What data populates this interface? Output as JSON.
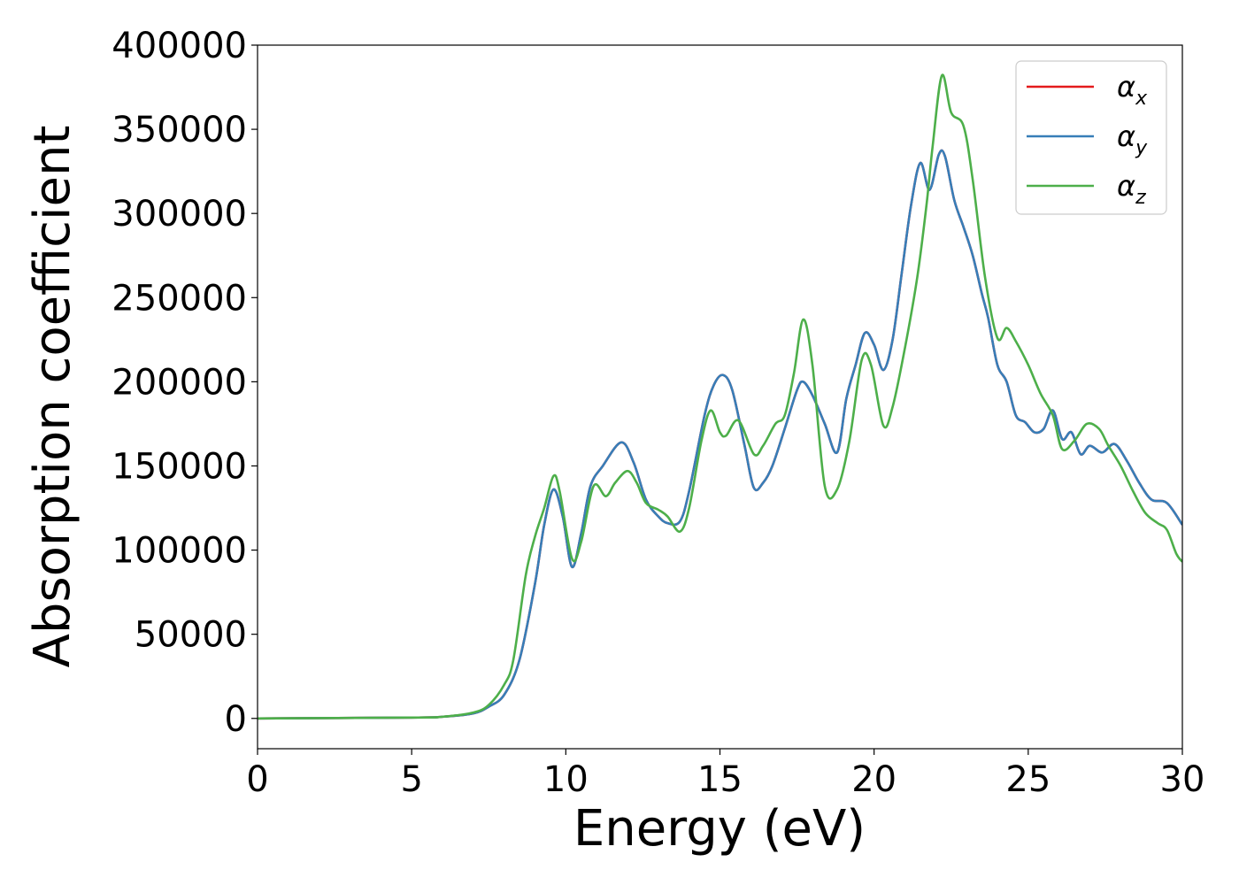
{
  "chart_data": {
    "type": "line",
    "title": "",
    "xlabel": "Energy (eV)",
    "ylabel": "Absorption coefficient",
    "xlim": [
      0,
      30
    ],
    "ylim": [
      -18000,
      400000
    ],
    "xticks": [
      0,
      5,
      10,
      15,
      20,
      25,
      30
    ],
    "xtick_labels": [
      "0",
      "5",
      "10",
      "15",
      "20",
      "25",
      "30"
    ],
    "yticks": [
      0,
      50000,
      100000,
      150000,
      200000,
      250000,
      300000,
      350000,
      400000
    ],
    "ytick_labels": [
      "0",
      "50000",
      "100000",
      "150000",
      "200000",
      "250000",
      "300000",
      "350000",
      "400000"
    ],
    "grid": false,
    "legend_position": "top-right",
    "series": [
      {
        "name": "α",
        "sub": "x",
        "color": "#e41a1c",
        "points": [
          [
            0,
            0
          ],
          [
            5,
            500
          ],
          [
            6,
            1000
          ],
          [
            7,
            3000
          ],
          [
            7.5,
            7000
          ],
          [
            8,
            14000
          ],
          [
            8.5,
            35000
          ],
          [
            9,
            80000
          ],
          [
            9.3,
            115000
          ],
          [
            9.6,
            136000
          ],
          [
            9.9,
            120000
          ],
          [
            10.2,
            90000
          ],
          [
            10.5,
            110000
          ],
          [
            10.8,
            138000
          ],
          [
            11.2,
            150000
          ],
          [
            11.8,
            164000
          ],
          [
            12.2,
            152000
          ],
          [
            12.6,
            130000
          ],
          [
            13,
            120000
          ],
          [
            13.3,
            116000
          ],
          [
            13.7,
            117000
          ],
          [
            14,
            135000
          ],
          [
            14.5,
            180000
          ],
          [
            14.8,
            198000
          ],
          [
            15.1,
            204000
          ],
          [
            15.4,
            195000
          ],
          [
            15.8,
            162000
          ],
          [
            16.1,
            137000
          ],
          [
            16.4,
            140000
          ],
          [
            16.7,
            150000
          ],
          [
            17.1,
            172000
          ],
          [
            17.5,
            195000
          ],
          [
            17.7,
            200000
          ],
          [
            18,
            192000
          ],
          [
            18.4,
            175000
          ],
          [
            18.8,
            158000
          ],
          [
            19.1,
            190000
          ],
          [
            19.4,
            210000
          ],
          [
            19.7,
            229000
          ],
          [
            20,
            222000
          ],
          [
            20.3,
            207000
          ],
          [
            20.6,
            225000
          ],
          [
            20.9,
            265000
          ],
          [
            21.2,
            305000
          ],
          [
            21.5,
            330000
          ],
          [
            21.8,
            314000
          ],
          [
            22.1,
            335000
          ],
          [
            22.3,
            334000
          ],
          [
            22.6,
            308000
          ],
          [
            22.9,
            292000
          ],
          [
            23.2,
            275000
          ],
          [
            23.5,
            252000
          ],
          [
            23.7,
            238000
          ],
          [
            24,
            210000
          ],
          [
            24.3,
            200000
          ],
          [
            24.6,
            180000
          ],
          [
            24.9,
            176000
          ],
          [
            25.2,
            170000
          ],
          [
            25.5,
            172000
          ],
          [
            25.8,
            183000
          ],
          [
            26.1,
            166000
          ],
          [
            26.4,
            170000
          ],
          [
            26.7,
            157000
          ],
          [
            27,
            162000
          ],
          [
            27.4,
            158000
          ],
          [
            27.8,
            163000
          ],
          [
            28.2,
            153000
          ],
          [
            28.6,
            140000
          ],
          [
            29,
            130000
          ],
          [
            29.5,
            128000
          ],
          [
            30,
            115000
          ]
        ]
      },
      {
        "name": "α",
        "sub": "y",
        "color": "#377eb8",
        "points": [
          [
            0,
            0
          ],
          [
            5,
            500
          ],
          [
            6,
            1000
          ],
          [
            7,
            3000
          ],
          [
            7.5,
            7000
          ],
          [
            8,
            14000
          ],
          [
            8.5,
            35000
          ],
          [
            9,
            80000
          ],
          [
            9.3,
            115000
          ],
          [
            9.6,
            136000
          ],
          [
            9.9,
            120000
          ],
          [
            10.2,
            90000
          ],
          [
            10.5,
            110000
          ],
          [
            10.8,
            138000
          ],
          [
            11.2,
            150000
          ],
          [
            11.8,
            164000
          ],
          [
            12.2,
            152000
          ],
          [
            12.6,
            130000
          ],
          [
            13,
            120000
          ],
          [
            13.3,
            116000
          ],
          [
            13.7,
            117000
          ],
          [
            14,
            135000
          ],
          [
            14.5,
            180000
          ],
          [
            14.8,
            198000
          ],
          [
            15.1,
            204000
          ],
          [
            15.4,
            195000
          ],
          [
            15.8,
            162000
          ],
          [
            16.1,
            137000
          ],
          [
            16.4,
            140000
          ],
          [
            16.7,
            150000
          ],
          [
            17.1,
            172000
          ],
          [
            17.5,
            195000
          ],
          [
            17.7,
            200000
          ],
          [
            18,
            192000
          ],
          [
            18.4,
            175000
          ],
          [
            18.8,
            158000
          ],
          [
            19.1,
            190000
          ],
          [
            19.4,
            210000
          ],
          [
            19.7,
            229000
          ],
          [
            20,
            222000
          ],
          [
            20.3,
            207000
          ],
          [
            20.6,
            225000
          ],
          [
            20.9,
            265000
          ],
          [
            21.2,
            305000
          ],
          [
            21.5,
            330000
          ],
          [
            21.8,
            314000
          ],
          [
            22.1,
            335000
          ],
          [
            22.3,
            334000
          ],
          [
            22.6,
            308000
          ],
          [
            22.9,
            292000
          ],
          [
            23.2,
            275000
          ],
          [
            23.5,
            252000
          ],
          [
            23.7,
            238000
          ],
          [
            24,
            210000
          ],
          [
            24.3,
            200000
          ],
          [
            24.6,
            180000
          ],
          [
            24.9,
            176000
          ],
          [
            25.2,
            170000
          ],
          [
            25.5,
            172000
          ],
          [
            25.8,
            183000
          ],
          [
            26.1,
            166000
          ],
          [
            26.4,
            170000
          ],
          [
            26.7,
            157000
          ],
          [
            27,
            162000
          ],
          [
            27.4,
            158000
          ],
          [
            27.8,
            163000
          ],
          [
            28.2,
            153000
          ],
          [
            28.6,
            140000
          ],
          [
            29,
            130000
          ],
          [
            29.5,
            128000
          ],
          [
            30,
            115000
          ]
        ]
      },
      {
        "name": "α",
        "sub": "z",
        "color": "#4daf4a",
        "points": [
          [
            0,
            0
          ],
          [
            5,
            500
          ],
          [
            6,
            1000
          ],
          [
            7,
            3500
          ],
          [
            7.5,
            8000
          ],
          [
            8,
            20000
          ],
          [
            8.3,
            35000
          ],
          [
            8.7,
            85000
          ],
          [
            9,
            108000
          ],
          [
            9.3,
            125000
          ],
          [
            9.6,
            144000
          ],
          [
            9.8,
            135000
          ],
          [
            10.2,
            95000
          ],
          [
            10.5,
            105000
          ],
          [
            10.9,
            138000
          ],
          [
            11.3,
            132000
          ],
          [
            11.6,
            140000
          ],
          [
            12,
            147000
          ],
          [
            12.3,
            140000
          ],
          [
            12.6,
            128000
          ],
          [
            13,
            124000
          ],
          [
            13.3,
            120000
          ],
          [
            13.7,
            111000
          ],
          [
            14,
            125000
          ],
          [
            14.4,
            165000
          ],
          [
            14.7,
            183000
          ],
          [
            15,
            170000
          ],
          [
            15.2,
            168000
          ],
          [
            15.6,
            177000
          ],
          [
            16.1,
            157000
          ],
          [
            16.4,
            162000
          ],
          [
            16.8,
            175000
          ],
          [
            17.1,
            180000
          ],
          [
            17.4,
            205000
          ],
          [
            17.7,
            237000
          ],
          [
            18,
            210000
          ],
          [
            18.4,
            138000
          ],
          [
            18.8,
            136000
          ],
          [
            19.2,
            165000
          ],
          [
            19.6,
            213000
          ],
          [
            19.9,
            210000
          ],
          [
            20.3,
            174000
          ],
          [
            20.6,
            185000
          ],
          [
            21,
            220000
          ],
          [
            21.4,
            262000
          ],
          [
            21.7,
            305000
          ],
          [
            21.9,
            340000
          ],
          [
            22.2,
            382000
          ],
          [
            22.5,
            360000
          ],
          [
            22.9,
            352000
          ],
          [
            23.2,
            320000
          ],
          [
            23.6,
            262000
          ],
          [
            24,
            226000
          ],
          [
            24.3,
            232000
          ],
          [
            24.6,
            224000
          ],
          [
            25,
            210000
          ],
          [
            25.4,
            193000
          ],
          [
            25.8,
            180000
          ],
          [
            26.1,
            160000
          ],
          [
            26.5,
            165000
          ],
          [
            26.9,
            175000
          ],
          [
            27.3,
            172000
          ],
          [
            27.6,
            162000
          ],
          [
            28,
            150000
          ],
          [
            28.4,
            135000
          ],
          [
            28.8,
            122000
          ],
          [
            29.2,
            116000
          ],
          [
            29.5,
            112000
          ],
          [
            29.8,
            98000
          ],
          [
            30,
            93000
          ]
        ]
      }
    ]
  }
}
